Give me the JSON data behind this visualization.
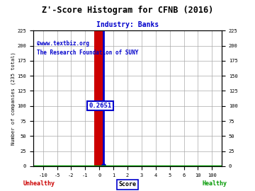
{
  "title": "Z'-Score Histogram for CFNB (2016)",
  "subtitle": "Industry: Banks",
  "watermark_line1": "©www.textbiz.org",
  "watermark_line2": "The Research Foundation of SUNY",
  "x_tick_positions": [
    -10,
    -5,
    -2,
    -1,
    0,
    1,
    2,
    3,
    4,
    5,
    6,
    10,
    100
  ],
  "x_tick_labels": [
    "-10",
    "-5",
    "-2",
    "-1",
    "0",
    "1",
    "2",
    "3",
    "4",
    "5",
    "6",
    "10",
    "100"
  ],
  "y_ticks": [
    0,
    25,
    50,
    75,
    100,
    125,
    150,
    175,
    200,
    225
  ],
  "ylim": [
    0,
    225
  ],
  "score_value": 0.2651,
  "score_label": "0.2651",
  "crosshair_y": 100,
  "red_bar_x": 0,
  "red_bar_height": 225,
  "red_bar_width": 0.9,
  "bg_color": "#ffffff",
  "grid_color": "#aaaaaa",
  "title_color": "#000000",
  "subtitle_color": "#0000cc",
  "watermark_color": "#0000cc",
  "unhealthy_color": "#cc0000",
  "healthy_color": "#009900",
  "score_box_color": "#0000cc",
  "red_bar_color": "#cc0000",
  "blue_line_color": "#0000cc",
  "green_base_color": "#009900"
}
